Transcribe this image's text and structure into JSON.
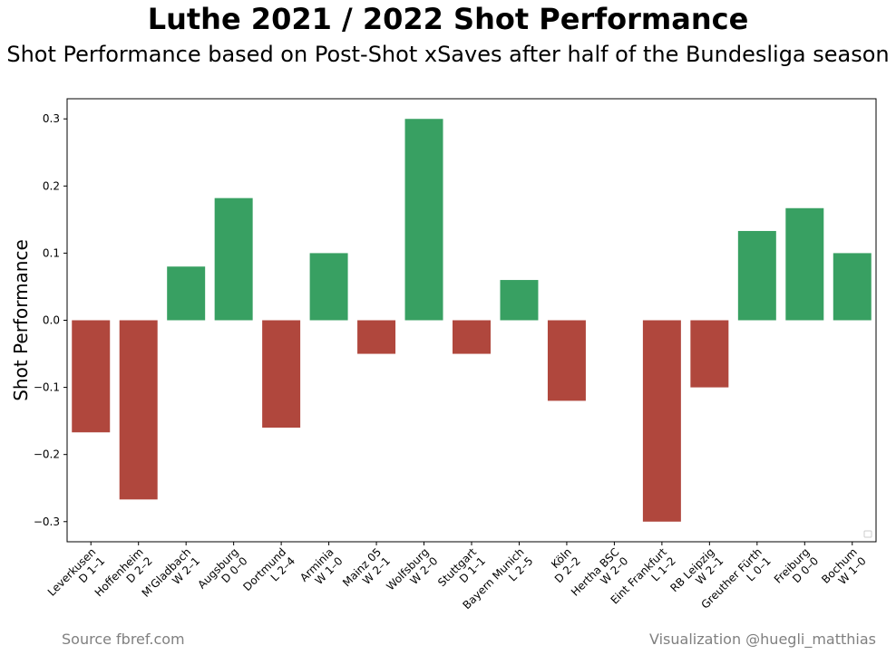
{
  "title": "Luthe 2021 / 2022 Shot Performance",
  "subtitle": "Shot Performance based on Post-Shot xSaves after half of the Bundesliga season",
  "footer": {
    "source": "Source fbref.com",
    "credit": "Visualization @huegli_matthias"
  },
  "colors": {
    "positive": "#38a062",
    "negative": "#b0473d"
  },
  "chart_data": {
    "type": "bar",
    "title": "Luthe 2021 / 2022 Shot Performance",
    "subtitle": "Shot Performance based on Post-Shot xSaves after half of the Bundesliga season",
    "xlabel": "",
    "ylabel": "Shot Performance",
    "ylim": [
      -0.33,
      0.33
    ],
    "yticks": [
      -0.3,
      -0.2,
      -0.1,
      0.0,
      0.1,
      0.2,
      0.3
    ],
    "ytick_labels": [
      "−0.3",
      "−0.2",
      "−0.1",
      "0.0",
      "0.1",
      "0.2",
      "0.3"
    ],
    "grid": false,
    "categories": [
      [
        "Leverkusen",
        "D 1–1"
      ],
      [
        "Hoffenheim",
        "D 2–2"
      ],
      [
        "M'Gladbach",
        "W 2–1"
      ],
      [
        "Augsburg",
        "D 0–0"
      ],
      [
        "Dortmund",
        "L 2–4"
      ],
      [
        "Arminia",
        "W 1–0"
      ],
      [
        "Mainz 05",
        "W 2–1"
      ],
      [
        "Wolfsburg",
        "W 2–0"
      ],
      [
        "Stuttgart",
        "D 1–1"
      ],
      [
        "Bayern Munich",
        "L 2–5"
      ],
      [
        "Köln",
        "D 2–2"
      ],
      [
        "Hertha BSC",
        "W 2–0"
      ],
      [
        "Eint Frankfurt",
        "L 1–2"
      ],
      [
        "RB Leipzig",
        "W 2–1"
      ],
      [
        "Greuther Fürth",
        "L 0–1"
      ],
      [
        "Freiburg",
        "D 0–0"
      ],
      [
        "Bochum",
        "W 1–0"
      ]
    ],
    "values": [
      -0.167,
      -0.267,
      0.08,
      0.182,
      -0.16,
      0.1,
      -0.05,
      0.3,
      -0.05,
      0.06,
      -0.12,
      0.0,
      -0.3,
      -0.1,
      0.133,
      0.167,
      0.1
    ]
  }
}
